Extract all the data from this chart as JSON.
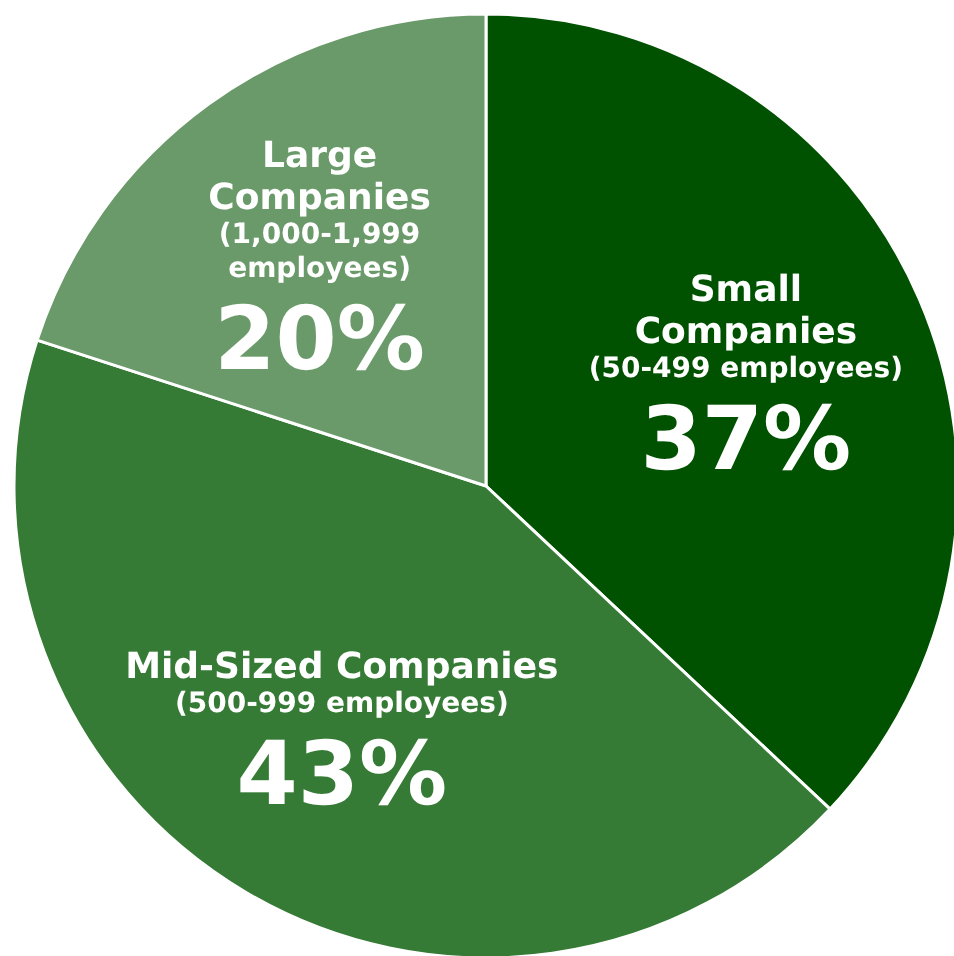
{
  "chart_data": {
    "type": "pie",
    "categories": [
      "Small\nCompanies\n(50-499 employees)",
      "Mid-Sized Companies\n(500-999 employees)",
      "Large\nCompanies\n(1,000-1,999\nemployees)"
    ],
    "values": [
      37,
      43,
      20
    ],
    "colors": [
      "#005200",
      "#357a35",
      "#6a9a6a"
    ],
    "value_labels": [
      "37%",
      "43%",
      "20%"
    ]
  }
}
